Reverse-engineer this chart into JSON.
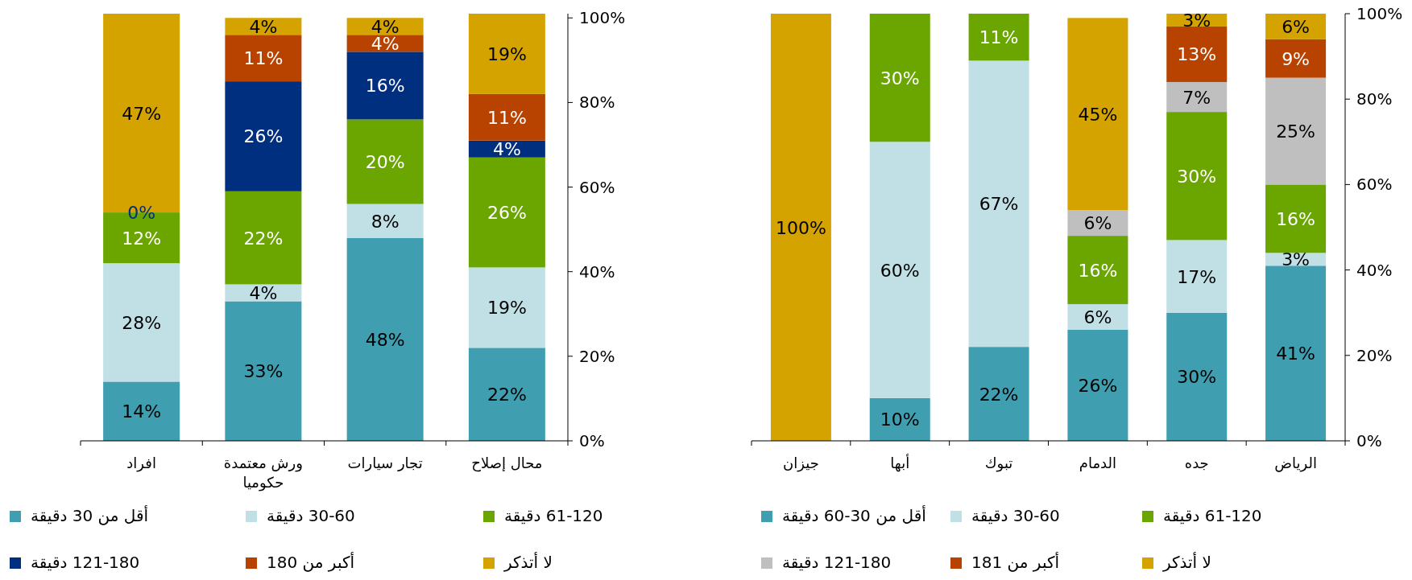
{
  "chart_data": [
    {
      "type": "bar",
      "stacked": true,
      "categories": [
        "افراد",
        "ورش معتمدة\nحكوميا",
        "تجار سيارات",
        "محال إصلاح"
      ],
      "ylim": [
        0,
        101
      ],
      "yticks": [
        {
          "value": 0,
          "label": "0%"
        },
        {
          "value": 20,
          "label": "20%"
        },
        {
          "value": 40,
          "label": "40%"
        },
        {
          "value": 60,
          "label": "60%"
        },
        {
          "value": 80,
          "label": "80%"
        },
        {
          "value": 100,
          "label": "100%"
        }
      ],
      "legend": "bottom",
      "grid": false,
      "annotations": [
        {
          "text": "0%",
          "x": "افراد",
          "y": 54
        }
      ],
      "series": [
        {
          "name": "أقل من 30 دقيقة",
          "color": "#3f9fb0",
          "values": [
            14,
            33,
            48,
            22
          ],
          "value_labels": [
            "14%",
            "33%",
            "48%",
            "22%"
          ]
        },
        {
          "name": "30-60 دقيقة",
          "color": "#c0e0e6",
          "values": [
            28,
            4,
            8,
            19
          ],
          "value_labels": [
            "28%",
            "4%",
            "8%",
            "19%"
          ]
        },
        {
          "name": "61-120 دقيقة",
          "color": "#6aa500",
          "values": [
            12,
            22,
            20,
            26
          ],
          "value_labels": [
            "12%",
            "22%",
            "20%",
            "26%"
          ]
        },
        {
          "name": "121-180 دقيقة",
          "color": "#002f7f",
          "values": [
            0,
            26,
            16,
            4
          ],
          "value_labels": [
            null,
            "26%",
            "16%",
            "4%"
          ]
        },
        {
          "name": "أكبر من 180",
          "color": "#b84300",
          "values": [
            null,
            11,
            4,
            11
          ],
          "value_labels": [
            null,
            "11%",
            "4%",
            "11%"
          ]
        },
        {
          "name": "لا أتذكر",
          "color": "#d4a300",
          "values": [
            47,
            4,
            4,
            19
          ],
          "value_labels": [
            "47%",
            "4%",
            "4%",
            "19%"
          ]
        }
      ]
    },
    {
      "type": "bar",
      "stacked": true,
      "categories": [
        "جيزان",
        "أبها",
        "تبوك",
        "الدمام",
        "جده",
        "الرياض"
      ],
      "ylim": [
        0,
        100
      ],
      "yticks": [
        {
          "value": 0,
          "label": "0%"
        },
        {
          "value": 20,
          "label": "20%"
        },
        {
          "value": 40,
          "label": "40%"
        },
        {
          "value": 60,
          "label": "60%"
        },
        {
          "value": 80,
          "label": "80%"
        },
        {
          "value": 100,
          "label": "100%"
        }
      ],
      "legend": "bottom",
      "grid": false,
      "series": [
        {
          "name": "أقل من 30-60 دقيقة",
          "color": "#3f9fb0",
          "values": [
            null,
            10,
            22,
            26,
            30,
            41
          ],
          "value_labels": [
            null,
            "10%",
            "22%",
            "26%",
            "30%",
            "41%"
          ]
        },
        {
          "name": "30-60 دقيقة",
          "color": "#c0e0e6",
          "values": [
            null,
            60,
            67,
            6,
            17,
            3
          ],
          "value_labels": [
            null,
            "60%",
            "67%",
            "6%",
            "17%",
            "3%"
          ]
        },
        {
          "name": "61-120 دقيقة",
          "color": "#6aa500",
          "values": [
            null,
            30,
            11,
            16,
            30,
            16
          ],
          "value_labels": [
            null,
            "30%",
            "11%",
            "16%",
            "30%",
            "16%"
          ]
        },
        {
          "name": "121-180 دقيقة",
          "color": "#bfbfbf",
          "values": [
            null,
            null,
            null,
            6,
            7,
            25
          ],
          "value_labels": [
            null,
            null,
            null,
            "6%",
            "7%",
            "25%"
          ]
        },
        {
          "name": "أكبر من 181",
          "color": "#b84300",
          "values": [
            null,
            null,
            null,
            null,
            13,
            9
          ],
          "value_labels": [
            null,
            null,
            null,
            null,
            "13%",
            "9%"
          ]
        },
        {
          "name": "لا أتذكر",
          "color": "#d4a300",
          "values": [
            100,
            null,
            null,
            45,
            3,
            6
          ],
          "value_labels": [
            "100%",
            null,
            null,
            "45%",
            "3%",
            "6%"
          ]
        }
      ]
    }
  ]
}
